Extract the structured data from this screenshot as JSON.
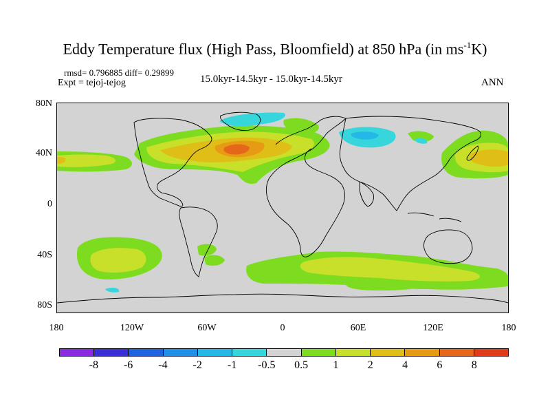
{
  "title": {
    "main": "Eddy Temperature flux (High Pass, Bloomfield) at 850 hPa (in ms",
    "sup": "-1",
    "unit_end": "K)"
  },
  "stats": "rmsd= 0.796885  diff= 0.29899",
  "experiment": "Expt = tejoj-tejog",
  "period": "15.0kyr-14.5kyr - 15.0kyr-14.5kyr",
  "season": "ANN",
  "axes": {
    "y_ticks": [
      "80N",
      "40N",
      "0",
      "40S",
      "80S"
    ],
    "x_ticks": [
      "180",
      "120W",
      "60W",
      "0",
      "60E",
      "120E",
      "180"
    ]
  },
  "colorbar": {
    "labels": [
      "-8",
      "-6",
      "-4",
      "-2",
      "-1",
      "-0.5",
      "0.5",
      "1",
      "2",
      "4",
      "6",
      "8"
    ],
    "colors": [
      "#8a2be2",
      "#3a2fd6",
      "#1f63e0",
      "#1e90e8",
      "#23b8e6",
      "#36d6dc",
      "#d3d3d3",
      "#7ddc1f",
      "#c9e02b",
      "#e0be18",
      "#e79a14",
      "#e5681a",
      "#e03c1a"
    ]
  },
  "map_colors": {
    "background": "#d3d3d3",
    "pos_1": "#7ddc1f",
    "pos_2": "#c9e02b",
    "pos_3": "#e0be18",
    "pos_4": "#e79a14",
    "pos_5": "#e5681a",
    "pos_6": "#e03c1a",
    "neg_1": "#36d6dc",
    "neg_2": "#23b8e6"
  }
}
